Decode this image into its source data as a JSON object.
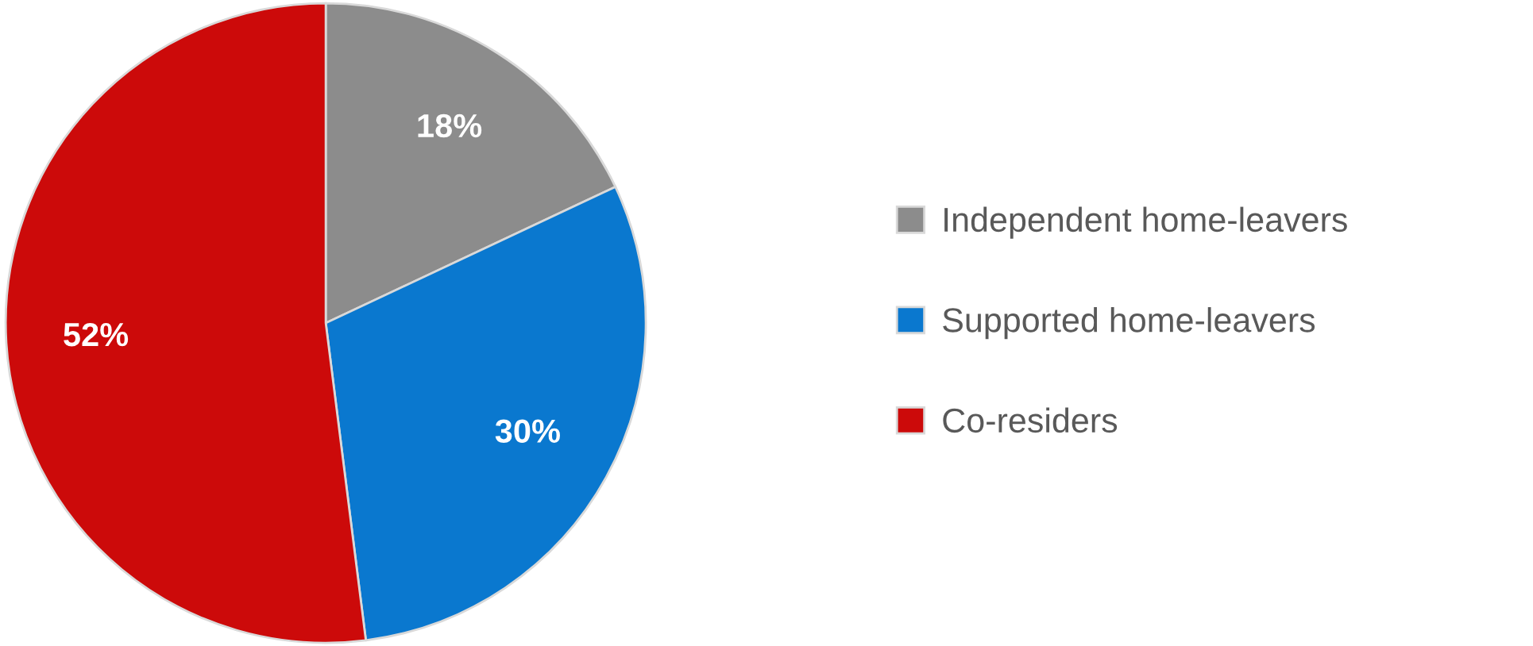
{
  "chart_data": {
    "type": "pie",
    "categories": [
      "Independent home-leavers",
      "Supported home-leavers",
      "Co-residers"
    ],
    "values": [
      18,
      30,
      52
    ],
    "colors": [
      "#8c8c8c",
      "#0a78cf",
      "#cc0a0a"
    ],
    "value_labels": [
      "18%",
      "30%",
      "52%"
    ],
    "legend": "right"
  }
}
